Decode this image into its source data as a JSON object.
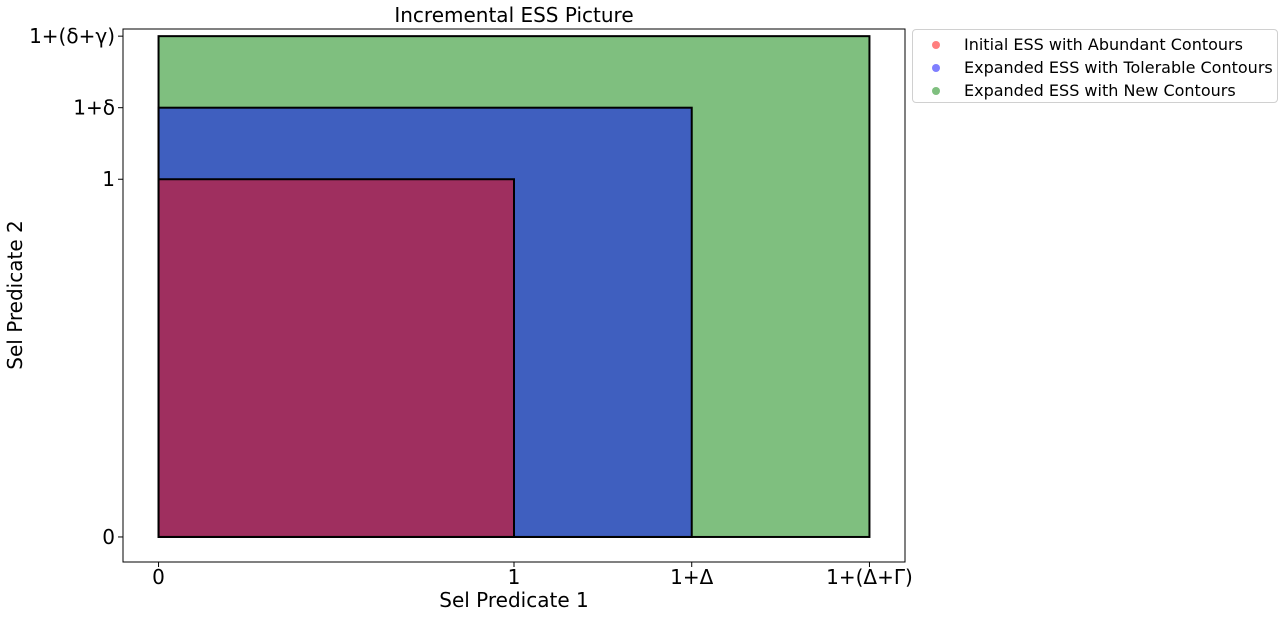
{
  "chart_data": {
    "type": "area",
    "title": "Incremental ESS Picture",
    "xlabel": "Sel Predicate 1",
    "ylabel": "Sel Predicate 2",
    "xlim": [
      -0.1,
      2.1
    ],
    "ylim": [
      -0.07,
      1.42
    ],
    "x_ticks": [
      {
        "value": 0,
        "label": "0"
      },
      {
        "value": 1,
        "label": "1"
      },
      {
        "value": 1.5,
        "label": "1+Δ"
      },
      {
        "value": 2,
        "label": "1+(Δ+Γ)"
      }
    ],
    "y_ticks": [
      {
        "value": 0,
        "label": "0"
      },
      {
        "value": 1,
        "label": "1"
      },
      {
        "value": 1.2,
        "label": "1+δ"
      },
      {
        "value": 1.4,
        "label": "1+(δ+γ)"
      }
    ],
    "grid": false,
    "legend_position": "outside-top-right",
    "series": [
      {
        "name": "Initial ESS with Abundant Contours",
        "color": "#ff0000",
        "x_max": 1,
        "y_max": 1
      },
      {
        "name": "Expanded ESS with Tolerable Contours",
        "color": "#0000ff",
        "x_max": 1.5,
        "y_max": 1.2
      },
      {
        "name": "Expanded ESS with New Contours",
        "color": "#008000",
        "x_max": 2,
        "y_max": 1.4
      }
    ]
  }
}
